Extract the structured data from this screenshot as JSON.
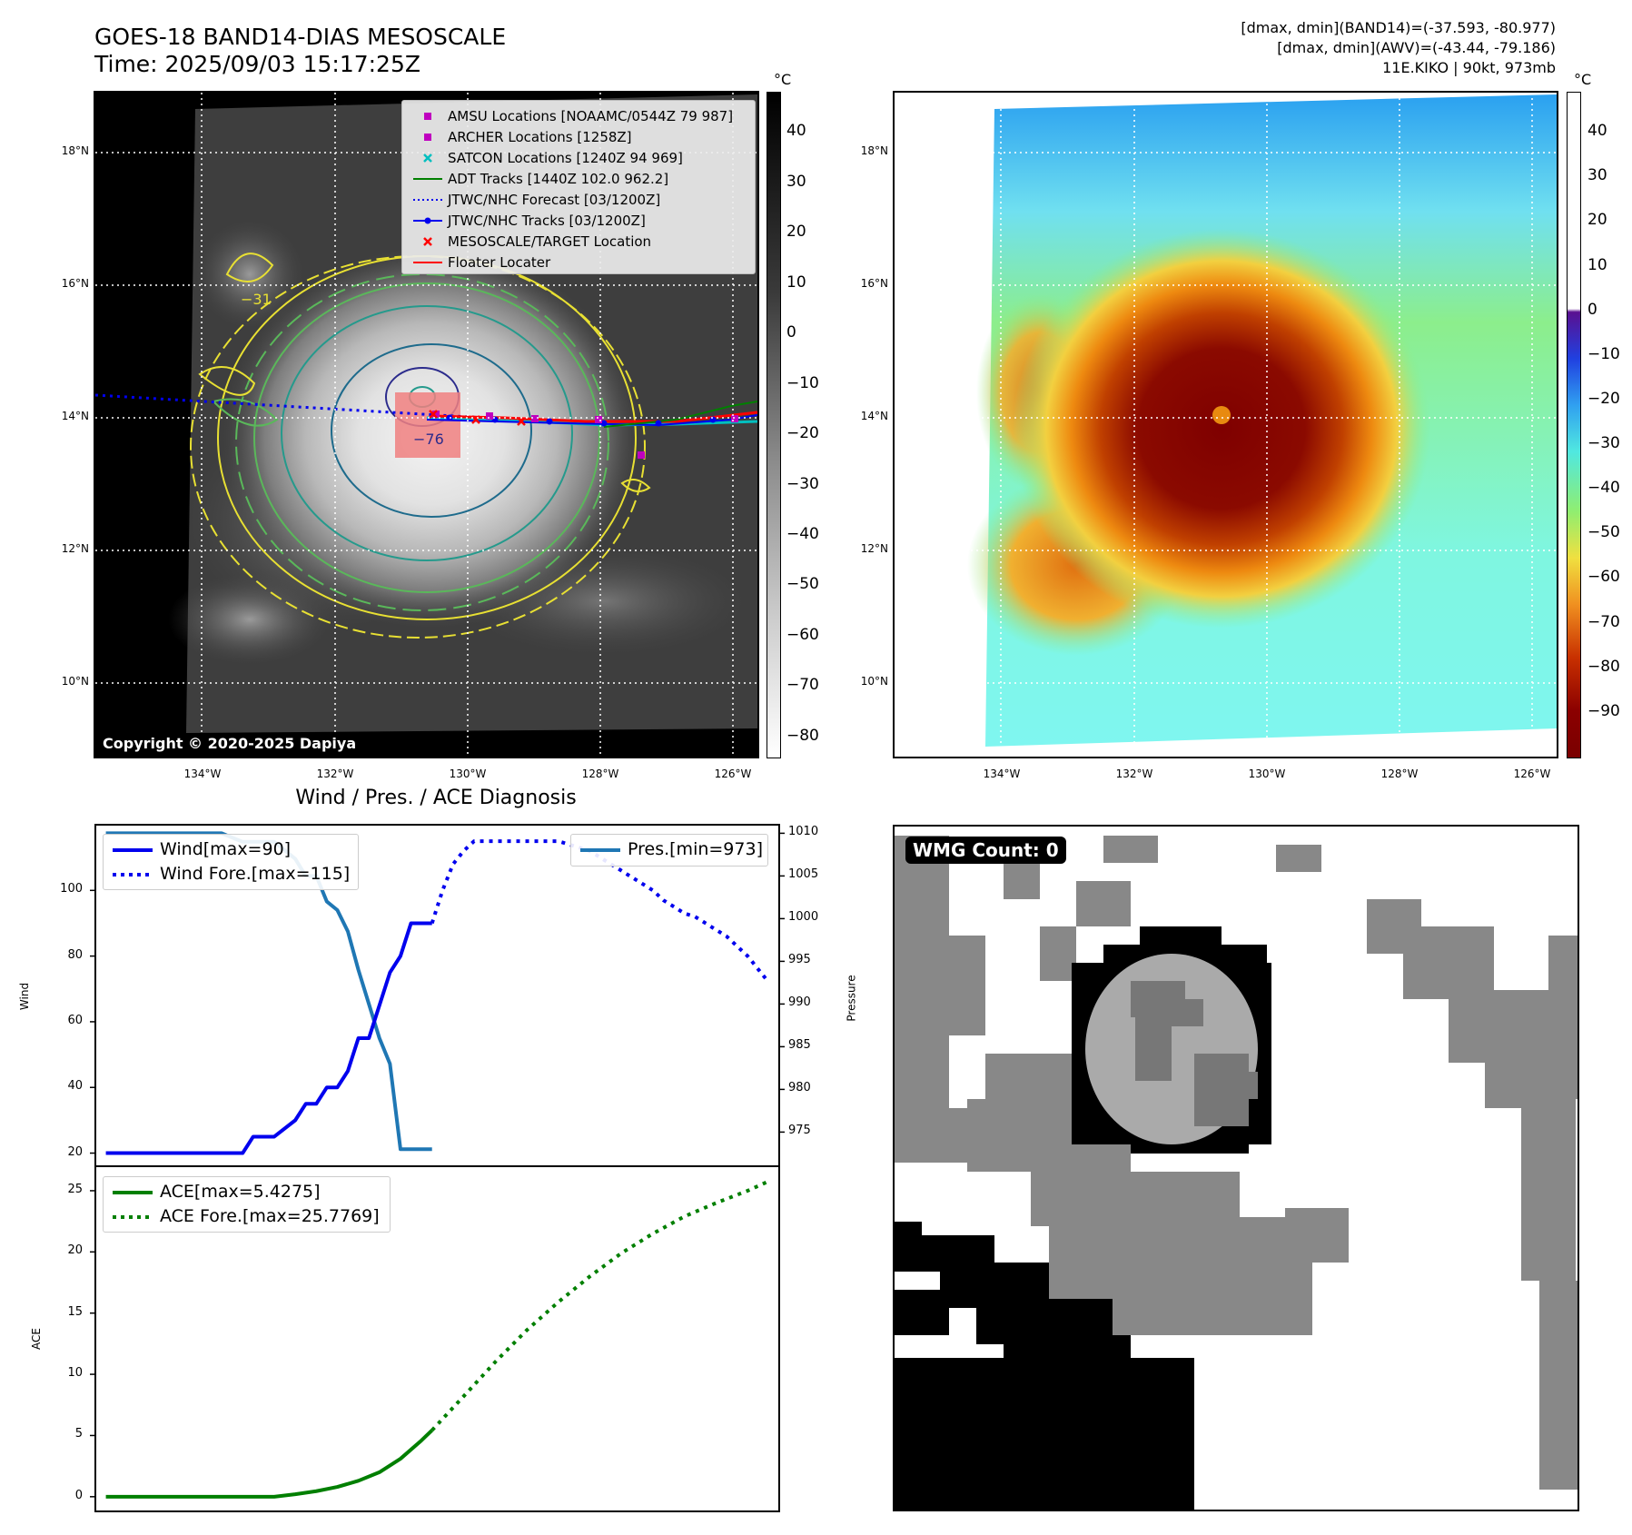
{
  "header": {
    "title_line1": "GOES-18 BAND14-DIAS MESOSCALE",
    "title_line2": "Time: 2025/09/03 15:17:25Z",
    "stats_line1": "[dmax, dmin](BAND14)=(-37.593, -80.977)",
    "stats_line2": "[dmax, dmin](AWV)=(-43.44, -79.186)",
    "stats_line3": "11E.KIKO | 90kt, 973mb"
  },
  "map_axes": {
    "lat_labels": [
      "18°N",
      "16°N",
      "14°N",
      "12°N",
      "10°N"
    ],
    "lon_labels": [
      "134°W",
      "132°W",
      "130°W",
      "128°W",
      "126°W"
    ]
  },
  "ir_colorbar": {
    "unit": "°C",
    "ticks": [
      "40",
      "30",
      "20",
      "10",
      "0",
      "−10",
      "−20",
      "−30",
      "−40",
      "−50",
      "−60",
      "−70",
      "−80"
    ]
  },
  "awv_colorbar": {
    "unit": "°C",
    "ticks": [
      "40",
      "30",
      "20",
      "10",
      "0",
      "−10",
      "−20",
      "−30",
      "−40",
      "−50",
      "−60",
      "−70",
      "−80",
      "−90"
    ]
  },
  "ir_panel": {
    "contour_labels": [
      "−31",
      "−76"
    ],
    "copyright": "Copyright © 2020-2025 Dapiya",
    "legend": [
      "AMSU Locations [NOAAMC/0544Z 79 987]",
      "ARCHER Locations [1258Z]",
      "SATCON Locations [1240Z 94 969]",
      "ADT Tracks [1440Z 102.0 962.2]",
      "JTWC/NHC Forecast [03/1200Z]",
      "JTWC/NHC Tracks [03/1200Z]",
      "MESOSCALE/TARGET Location",
      "Floater Locater"
    ]
  },
  "wmg_panel": {
    "label": "WMG Count: 0"
  },
  "colors": {
    "wind": "#0000ee",
    "pressure": "#1f77b4",
    "ace": "#007f00",
    "amsu": "#bf00bf",
    "satcon": "#00bfbf",
    "adt": "#008000",
    "target": "#ff0000"
  },
  "chart_data": [
    {
      "type": "line",
      "title": "Wind / Pres. / ACE Diagnosis",
      "ylabel": "Wind",
      "ylabel_right": "Pressure",
      "ylim": [
        16,
        120
      ],
      "ylim_right": [
        971,
        1011
      ],
      "yticks": [
        20,
        40,
        60,
        80,
        100
      ],
      "yticks_right": [
        975,
        980,
        985,
        990,
        995,
        1000,
        1005,
        1010
      ],
      "series": [
        {
          "name": "Wind[max=90]",
          "style": "solid",
          "axis": "left",
          "x": [
            0,
            13,
            14,
            16,
            18,
            19,
            20,
            21,
            22,
            23,
            24,
            25,
            26,
            27,
            28,
            29,
            31
          ],
          "values": [
            20,
            20,
            25,
            25,
            30,
            35,
            35,
            40,
            40,
            45,
            55,
            55,
            65,
            75,
            80,
            90,
            90
          ]
        },
        {
          "name": "Wind Fore.[max=115]",
          "style": "dotted",
          "axis": "left",
          "x": [
            31,
            32,
            33,
            34,
            35,
            37,
            39,
            41,
            43,
            45,
            46,
            47,
            48,
            49,
            50,
            51,
            52,
            53,
            54,
            55,
            56,
            57,
            58,
            59,
            61,
            62,
            63
          ],
          "values": [
            90,
            100,
            108,
            112,
            115,
            115,
            115,
            115,
            115,
            113,
            112,
            110,
            108,
            106,
            104,
            102,
            100,
            97,
            95,
            93,
            92,
            90,
            88,
            86,
            80,
            76,
            72
          ]
        },
        {
          "name": "Pres.[min=973]",
          "style": "solid",
          "axis": "right",
          "x": [
            0,
            11,
            12,
            13,
            14,
            15,
            16,
            17,
            18,
            19,
            20,
            21,
            22,
            23,
            24,
            25,
            26,
            27,
            28,
            29,
            30,
            31
          ],
          "values": [
            1010,
            1010,
            1009.5,
            1009,
            1009,
            1009,
            1009,
            1008,
            1007,
            1005,
            1005,
            1002,
            1001,
            998.5,
            994,
            990,
            986,
            983,
            973,
            973,
            973,
            973
          ]
        }
      ]
    },
    {
      "type": "line",
      "ylabel": "ACE",
      "ylim": [
        -1.2,
        27
      ],
      "yticks": [
        0,
        5,
        10,
        15,
        20,
        25
      ],
      "series": [
        {
          "name": "ACE[max=5.4275]",
          "style": "solid",
          "x": [
            0,
            16,
            18,
            20,
            22,
            24,
            26,
            28,
            30,
            31
          ],
          "values": [
            0,
            0,
            0.2,
            0.45,
            0.8,
            1.3,
            2.0,
            3.1,
            4.6,
            5.4275
          ]
        },
        {
          "name": "ACE Fore.[max=25.7769]",
          "style": "dotted",
          "x": [
            31,
            34,
            37,
            40,
            43,
            46,
            49,
            52,
            55,
            58,
            61,
            63
          ],
          "values": [
            5.4275,
            8.2,
            11.0,
            13.6,
            15.9,
            18.0,
            19.9,
            21.5,
            22.9,
            24.0,
            25.0,
            25.7769
          ]
        }
      ]
    }
  ]
}
